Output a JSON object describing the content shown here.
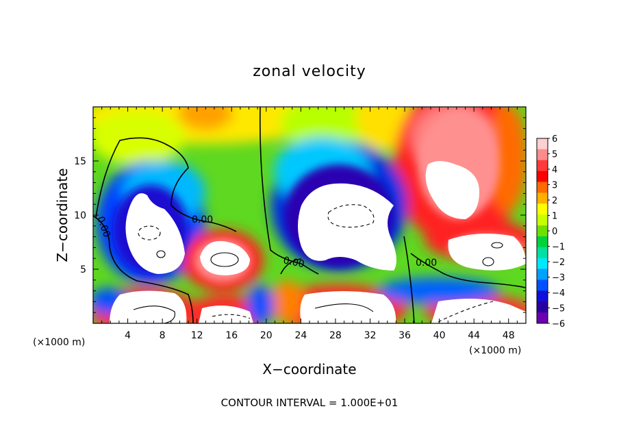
{
  "chart_data": {
    "type": "heatmap",
    "title": "zonal velocity",
    "xlabel": "X−coordinate",
    "ylabel": "Z−coordinate",
    "x_unit": "(×1000 m)",
    "y_unit": "(×1000 m)",
    "xlim": [
      0,
      50
    ],
    "ylim": [
      0,
      20
    ],
    "x_ticks": [
      4,
      8,
      12,
      16,
      20,
      24,
      28,
      32,
      36,
      40,
      44,
      48
    ],
    "y_ticks": [
      5,
      10,
      15
    ],
    "colorbar": {
      "levels": [
        6,
        5,
        4,
        3,
        2,
        1,
        0,
        -1,
        -2,
        -3,
        -4,
        -5,
        -6
      ],
      "labels": [
        "6",
        "5",
        "4",
        "3",
        "2",
        "1",
        "0",
        "−1",
        "−2",
        "−3",
        "−4",
        "−5",
        "−6"
      ],
      "colors": [
        "#ffd0d0",
        "#ff8c8c",
        "#ff3a3a",
        "#ff0000",
        "#ff6a00",
        "#ffb000",
        "#ffff00",
        "#c8ff00",
        "#70e000",
        "#00d23c",
        "#00e0a0",
        "#00e8ff",
        "#00a0ff",
        "#0050ff",
        "#1010d8",
        "#2a00a0",
        "#6a00b0"
      ]
    },
    "contour_interval": "CONTOUR INTERVAL = 1.000E+01",
    "contour_labels": [
      "0.00",
      "0.00",
      "0.00",
      "0.00"
    ],
    "features": [
      {
        "kind": "negative-core",
        "x": 6,
        "z": 8.5
      },
      {
        "kind": "positive-core",
        "x": 14,
        "z": 6
      },
      {
        "kind": "negative-core",
        "x": 28,
        "z": 9
      },
      {
        "kind": "positive-core",
        "x": 43,
        "z": 13
      },
      {
        "kind": "positive-core",
        "x": 44,
        "z": 7
      },
      {
        "kind": "positive-core",
        "x": 8,
        "z": 1.5
      },
      {
        "kind": "positive-core",
        "x": 30,
        "z": 1.5
      },
      {
        "kind": "positive-core",
        "x": 45,
        "z": 1.5
      }
    ]
  }
}
